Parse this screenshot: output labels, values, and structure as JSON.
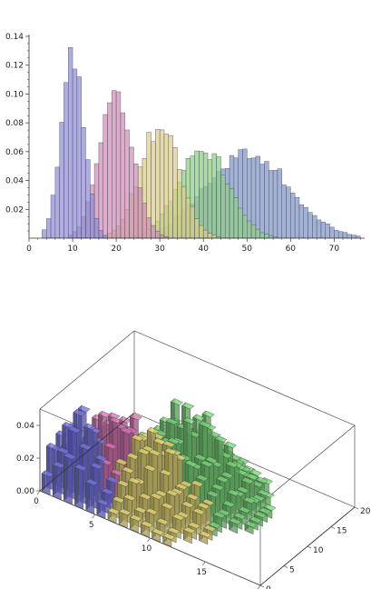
{
  "chart_data": [
    {
      "type": "histogram",
      "bin_width": 1,
      "xlim": [
        0,
        77
      ],
      "ylim": [
        0,
        0.14
      ],
      "x_ticks": [
        0,
        10,
        20,
        30,
        40,
        50,
        60,
        70
      ],
      "y_ticks": [
        0.02,
        0.04,
        0.06,
        0.08,
        0.1,
        0.12,
        0.14
      ],
      "x_tick_labels": [
        "0",
        "10",
        "20",
        "30",
        "40",
        "50",
        "60",
        "70"
      ],
      "y_tick_labels": [
        "0.02",
        "0.04",
        "0.06",
        "0.08",
        "0.10",
        "0.12",
        "0.14"
      ],
      "grid": false,
      "series": [
        {
          "mean": 50,
          "sd": 9.5,
          "peak": 0.06,
          "range": [
            28,
            76
          ],
          "color": "#7f95c8"
        },
        {
          "mean": 40,
          "sd": 5.8,
          "peak": 0.062,
          "range": [
            22,
            58
          ],
          "color": "#8fcf86"
        },
        {
          "mean": 30,
          "sd": 4.6,
          "peak": 0.078,
          "range": [
            15,
            45
          ],
          "color": "#dccf8a"
        },
        {
          "mean": 20,
          "sd": 3.8,
          "peak": 0.1,
          "range": [
            9,
            32
          ],
          "color": "#cf8fb6"
        },
        {
          "mean": 10,
          "sd": 2.6,
          "peak": 0.128,
          "range": [
            3,
            21
          ],
          "color": "#8d8dd6"
        }
      ]
    },
    {
      "type": "bar3d",
      "x_ticks": [
        "0",
        "5",
        "10",
        "15",
        "20"
      ],
      "y_ticks": [
        "0",
        "5",
        "10",
        "15",
        "20"
      ],
      "z_ticks": [
        "0.00",
        "0.02",
        "0.04"
      ],
      "xlim": [
        0,
        20
      ],
      "ylim": [
        0,
        20
      ],
      "zlim": [
        0,
        0.05
      ],
      "series": [
        {
          "cx": 2.5,
          "cy": 3.0,
          "sx": 2.0,
          "sy": 2.2,
          "peak": 0.045,
          "color": "#6b6bd4"
        },
        {
          "cx": 4.5,
          "cy": 6.5,
          "sx": 2.5,
          "sy": 2.5,
          "peak": 0.042,
          "color": "#c86aa6"
        },
        {
          "cx": 8.0,
          "cy": 6.0,
          "sx": 3.0,
          "sy": 3.0,
          "peak": 0.036,
          "color": "#d2c56a"
        },
        {
          "cx": 9.0,
          "cy": 11.0,
          "sx": 3.2,
          "sy": 3.5,
          "peak": 0.044,
          "color": "#6fc46f"
        }
      ]
    }
  ]
}
